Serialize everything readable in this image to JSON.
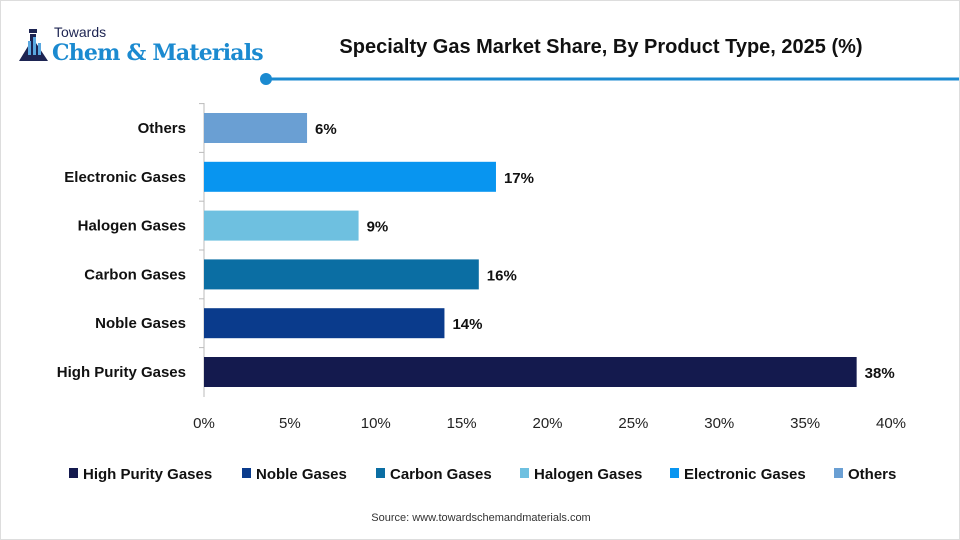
{
  "logo": {
    "line1": "Towards",
    "line2": "Chem & Materials"
  },
  "source": "Source: www.towardschemandmaterials.com",
  "chart_data": {
    "type": "bar",
    "orientation": "horizontal",
    "title": "Specialty Gas Market Share, By Product Type, 2025 (%)",
    "categories": [
      "High Purity Gases",
      "Noble Gases",
      "Carbon Gases",
      "Halogen Gases",
      "Electronic Gases",
      "Others"
    ],
    "values": [
      38,
      14,
      16,
      9,
      17,
      6
    ],
    "data_labels": [
      "38%",
      "14%",
      "16%",
      "9%",
      "17%",
      "6%"
    ],
    "colors": [
      "#141a4e",
      "#0a3b8c",
      "#0b6ea3",
      "#6ec0e0",
      "#0895f0",
      "#6a9fd3"
    ],
    "xlim": [
      0,
      40
    ],
    "x_ticks": [
      "0%",
      "5%",
      "10%",
      "15%",
      "20%",
      "25%",
      "30%",
      "35%",
      "40%"
    ],
    "grid": false,
    "legend": "bottom",
    "xlabel": "",
    "ylabel": ""
  }
}
